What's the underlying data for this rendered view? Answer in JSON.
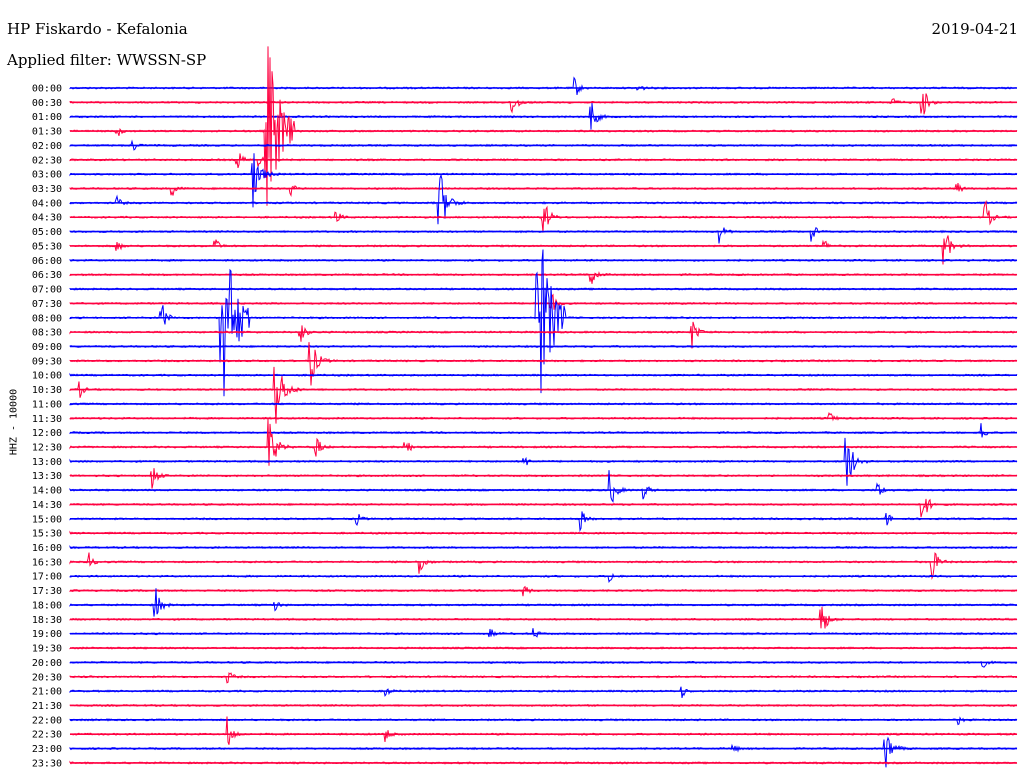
{
  "header": {
    "station": "HP Fiskardo - Kefalonia",
    "date": "2019-04-21",
    "filter": "Applied filter: WWSSN-SP"
  },
  "channel_label": "HHZ - 10000",
  "colors": {
    "even_row": "#0000ff",
    "odd_row": "#ff0040"
  },
  "chart_data": {
    "type": "line",
    "title": "HP Fiskardo - Kefalonia",
    "ylabel": "HHZ - 10000",
    "xlabel": "",
    "categories": [
      "00:00",
      "00:30",
      "01:00",
      "01:30",
      "02:00",
      "02:30",
      "03:00",
      "03:30",
      "04:00",
      "04:30",
      "05:00",
      "05:30",
      "06:00",
      "06:30",
      "07:00",
      "07:30",
      "08:00",
      "08:30",
      "09:00",
      "09:30",
      "10:00",
      "10:30",
      "11:00",
      "11:30",
      "12:00",
      "12:30",
      "13:00",
      "13:30",
      "14:00",
      "14:30",
      "15:00",
      "15:30",
      "16:00",
      "16:30",
      "17:00",
      "17:30",
      "18:00",
      "18:30",
      "19:00",
      "19:30",
      "20:00",
      "20:30",
      "21:00",
      "21:30",
      "22:00",
      "22:30",
      "23:00",
      "23:30"
    ],
    "trace_minutes": 30,
    "events": [
      {
        "row": "00:00",
        "minute": 16.0,
        "amp": 0.5
      },
      {
        "row": "00:00",
        "minute": 18.0,
        "amp": 0.3
      },
      {
        "row": "00:30",
        "minute": 14.0,
        "amp": 0.8
      },
      {
        "row": "00:30",
        "minute": 26.0,
        "amp": 0.4
      },
      {
        "row": "00:30",
        "minute": 27.0,
        "amp": 0.9
      },
      {
        "row": "01:00",
        "minute": 16.5,
        "amp": 0.9
      },
      {
        "row": "01:30",
        "minute": 1.5,
        "amp": 0.3
      },
      {
        "row": "01:30",
        "minute": 6.2,
        "amp": 5.0
      },
      {
        "row": "02:00",
        "minute": 2.0,
        "amp": 0.3
      },
      {
        "row": "02:30",
        "minute": 5.3,
        "amp": 0.6
      },
      {
        "row": "02:30",
        "minute": 6.0,
        "amp": 0.3
      },
      {
        "row": "03:00",
        "minute": 5.8,
        "amp": 1.5
      },
      {
        "row": "03:30",
        "minute": 3.2,
        "amp": 0.5
      },
      {
        "row": "03:30",
        "minute": 7.0,
        "amp": 0.3
      },
      {
        "row": "03:30",
        "minute": 28.1,
        "amp": 0.4
      },
      {
        "row": "04:00",
        "minute": 1.5,
        "amp": 0.3
      },
      {
        "row": "04:00",
        "minute": 11.7,
        "amp": 1.8
      },
      {
        "row": "04:30",
        "minute": 8.4,
        "amp": 0.5
      },
      {
        "row": "04:30",
        "minute": 15.0,
        "amp": 1.0
      },
      {
        "row": "04:30",
        "minute": 29.0,
        "amp": 0.8
      },
      {
        "row": "05:00",
        "minute": 20.6,
        "amp": 0.5
      },
      {
        "row": "05:00",
        "minute": 23.5,
        "amp": 0.5
      },
      {
        "row": "05:30",
        "minute": 1.5,
        "amp": 0.3
      },
      {
        "row": "05:30",
        "minute": 4.6,
        "amp": 0.4
      },
      {
        "row": "05:30",
        "minute": 23.9,
        "amp": 0.3
      },
      {
        "row": "05:30",
        "minute": 27.7,
        "amp": 1.0
      },
      {
        "row": "06:30",
        "minute": 16.5,
        "amp": 0.7
      },
      {
        "row": "07:30",
        "minute": 15.2,
        "amp": 0.8
      },
      {
        "row": "08:00",
        "minute": 2.9,
        "amp": 0.8
      },
      {
        "row": "08:00",
        "minute": 4.8,
        "amp": 5.0
      },
      {
        "row": "08:00",
        "minute": 14.8,
        "amp": 5.0
      },
      {
        "row": "08:30",
        "minute": 7.3,
        "amp": 0.6
      },
      {
        "row": "08:30",
        "minute": 19.7,
        "amp": 0.8
      },
      {
        "row": "09:30",
        "minute": 7.6,
        "amp": 1.4
      },
      {
        "row": "10:30",
        "minute": 0.3,
        "amp": 0.4
      },
      {
        "row": "10:30",
        "minute": 6.5,
        "amp": 2.0
      },
      {
        "row": "11:30",
        "minute": 24.0,
        "amp": 0.5
      },
      {
        "row": "12:00",
        "minute": 28.9,
        "amp": 0.4
      },
      {
        "row": "12:30",
        "minute": 6.3,
        "amp": 1.5
      },
      {
        "row": "12:30",
        "minute": 7.8,
        "amp": 0.6
      },
      {
        "row": "12:30",
        "minute": 10.6,
        "amp": 0.6
      },
      {
        "row": "13:00",
        "minute": 14.4,
        "amp": 0.3
      },
      {
        "row": "13:00",
        "minute": 24.6,
        "amp": 1.5
      },
      {
        "row": "13:30",
        "minute": 2.6,
        "amp": 0.7
      },
      {
        "row": "14:00",
        "minute": 17.1,
        "amp": 1.0
      },
      {
        "row": "14:00",
        "minute": 18.2,
        "amp": 0.4
      },
      {
        "row": "14:00",
        "minute": 25.6,
        "amp": 0.5
      },
      {
        "row": "14:30",
        "minute": 27.0,
        "amp": 1.0
      },
      {
        "row": "15:00",
        "minute": 9.1,
        "amp": 0.3
      },
      {
        "row": "15:00",
        "minute": 16.2,
        "amp": 0.5
      },
      {
        "row": "15:00",
        "minute": 25.9,
        "amp": 0.3
      },
      {
        "row": "16:30",
        "minute": 0.6,
        "amp": 0.4
      },
      {
        "row": "16:30",
        "minute": 11.1,
        "amp": 0.6
      },
      {
        "row": "16:30",
        "minute": 27.3,
        "amp": 0.9
      },
      {
        "row": "17:00",
        "minute": 17.1,
        "amp": 0.3
      },
      {
        "row": "17:30",
        "minute": 14.4,
        "amp": 0.3
      },
      {
        "row": "18:00",
        "minute": 2.7,
        "amp": 0.9
      },
      {
        "row": "18:00",
        "minute": 6.5,
        "amp": 0.3
      },
      {
        "row": "18:30",
        "minute": 23.8,
        "amp": 1.0
      },
      {
        "row": "19:00",
        "minute": 13.3,
        "amp": 0.3
      },
      {
        "row": "19:00",
        "minute": 14.7,
        "amp": 0.3
      },
      {
        "row": "20:00",
        "minute": 28.9,
        "amp": 0.3
      },
      {
        "row": "20:30",
        "minute": 5.0,
        "amp": 0.4
      },
      {
        "row": "21:00",
        "minute": 10.0,
        "amp": 0.3
      },
      {
        "row": "21:00",
        "minute": 19.4,
        "amp": 0.3
      },
      {
        "row": "22:00",
        "minute": 28.1,
        "amp": 0.3
      },
      {
        "row": "22:30",
        "minute": 5.0,
        "amp": 0.8
      },
      {
        "row": "22:30",
        "minute": 10.0,
        "amp": 0.4
      },
      {
        "row": "23:00",
        "minute": 21.0,
        "amp": 0.3
      },
      {
        "row": "23:00",
        "minute": 25.8,
        "amp": 1.3
      }
    ]
  }
}
